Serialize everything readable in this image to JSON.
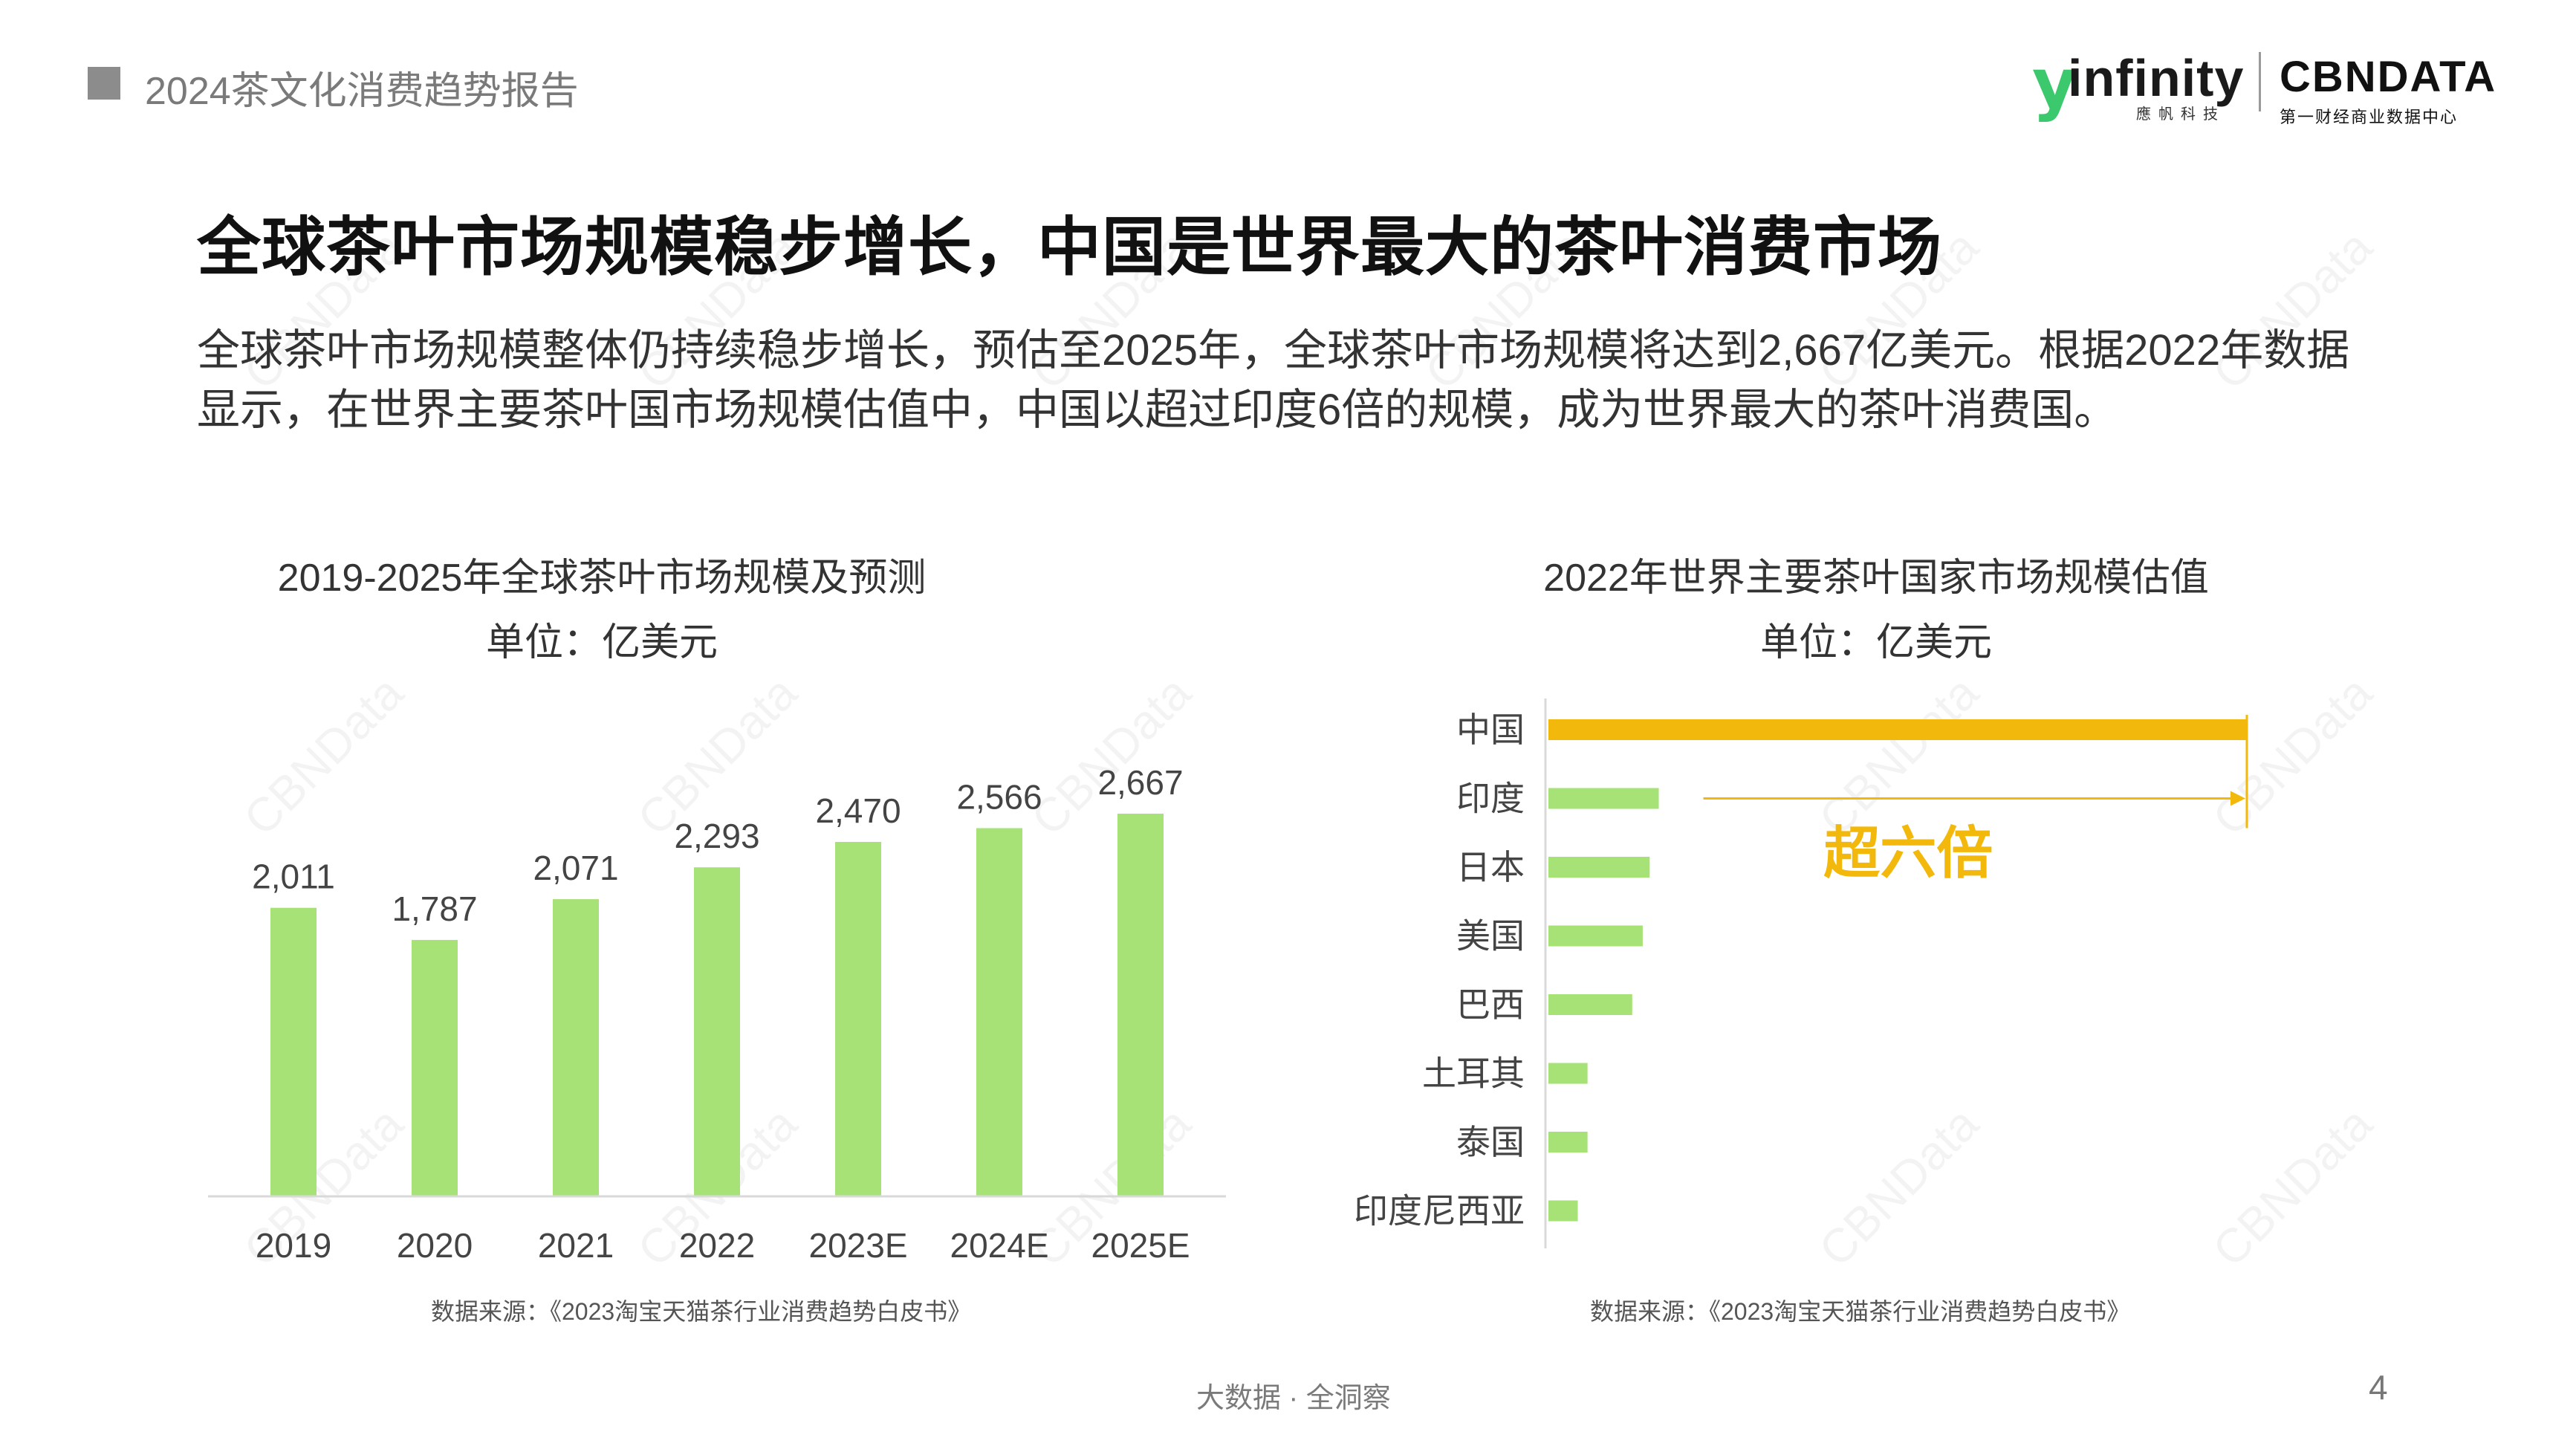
{
  "header": {
    "report_title": "2024茶文化消费趋势报告"
  },
  "logos": {
    "infinity": {
      "mark": "y",
      "name": "infinity",
      "subtitle": "應帆科技"
    },
    "cbndata": {
      "name": "CBNDATA",
      "subtitle": "第一财经商业数据中心"
    }
  },
  "main": {
    "title": "全球茶叶市场规模稳步增长，中国是世界最大的茶叶消费市场",
    "intro_line1": "全球茶叶市场规模整体仍持续稳步增长，预估至2025年，全球茶叶市场规模将达到2,667亿美元。根据2022年数据",
    "intro_line2": "显示，在世界主要茶叶国市场规模估值中，中国以超过印度6倍的规模，成为世界最大的茶叶消费国。"
  },
  "chart_data": [
    {
      "type": "bar",
      "title": "2019-2025年全球茶叶市场规模及预测",
      "subtitle": "单位：亿美元",
      "categories": [
        "2019",
        "2020",
        "2021",
        "2022",
        "2023E",
        "2024E",
        "2025E"
      ],
      "values": [
        2011,
        1787,
        2071,
        2293,
        2470,
        2566,
        2667
      ],
      "data_labels": [
        "2,011",
        "1,787",
        "2,071",
        "2,293",
        "2,470",
        "2,566",
        "2,667"
      ],
      "ylim": [
        0,
        2900
      ],
      "grid": false,
      "source": "数据来源：《2023淘宝天猫茶行业消费趋势白皮书》",
      "colors": {
        "bar": "#a6e276",
        "axis": "#d9d9d9"
      }
    },
    {
      "type": "bar",
      "orientation": "horizontal",
      "title": "2022年世界主要茶叶国家市场规模估值",
      "subtitle": "单位：亿美元",
      "categories": [
        "中国",
        "印度",
        "日本",
        "美国",
        "巴西",
        "土耳其",
        "泰国",
        "印度尼西亚"
      ],
      "values": [
        100,
        15.8,
        14.5,
        13.5,
        12,
        5.6,
        5.6,
        4.2
      ],
      "annotation": "超六倍",
      "source": "数据来源：《2023淘宝天猫茶行业消费趋势白皮书》",
      "colors": {
        "highlight": "#f2b80b",
        "bar": "#a6e276",
        "axis": "#d9d9d9",
        "annotation": "#f2b80b"
      }
    }
  ],
  "footer": {
    "tagline": "大数据 · 全洞察",
    "page_number": "4"
  }
}
